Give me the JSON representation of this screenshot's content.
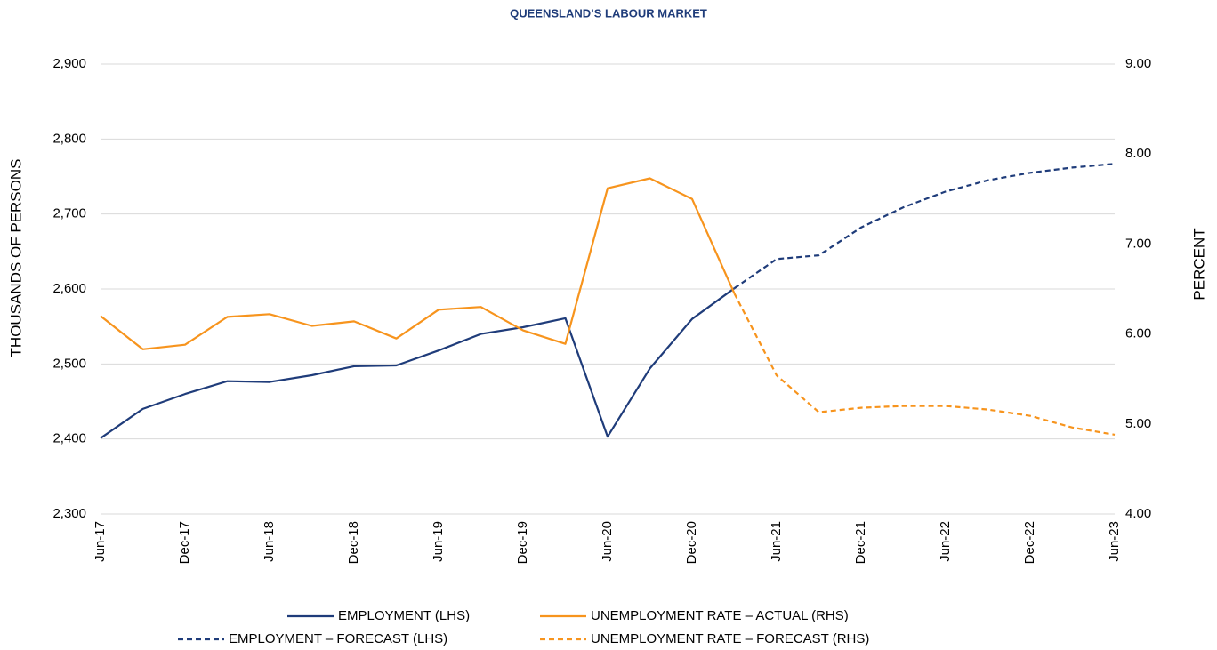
{
  "chart_data": {
    "type": "line",
    "title": "QUEENSLAND’S LABOUR MARKET",
    "y_label": "THOUSANDS OF PERSONS",
    "y2_label": "PERCENT",
    "categories": [
      "Jun-17",
      null,
      "Dec-17",
      null,
      "Jun-18",
      null,
      "Dec-18",
      null,
      "Jun-19",
      null,
      "Dec-19",
      null,
      "Jun-20",
      null,
      "Dec-20",
      null,
      "Jun-21",
      null,
      "Dec-21",
      null,
      "Jun-22",
      null,
      "Dec-22",
      null,
      "Jun-23"
    ],
    "ylim": [
      2300,
      2900
    ],
    "yticks": [
      {
        "value": 2300,
        "label": "2,300"
      },
      {
        "value": 2400,
        "label": "2,400"
      },
      {
        "value": 2500,
        "label": "2,500"
      },
      {
        "value": 2600,
        "label": "2,600"
      },
      {
        "value": 2700,
        "label": "2,700"
      },
      {
        "value": 2800,
        "label": "2,800"
      },
      {
        "value": 2900,
        "label": "2,900"
      }
    ],
    "y2lim": [
      4,
      9
    ],
    "y2ticks": [
      {
        "value": 4,
        "label": "4.00"
      },
      {
        "value": 5,
        "label": "5.00"
      },
      {
        "value": 6,
        "label": "6.00"
      },
      {
        "value": 7,
        "label": "7.00"
      },
      {
        "value": 8,
        "label": "8.00"
      },
      {
        "value": 9,
        "label": "9.00"
      }
    ],
    "grid": true,
    "series": [
      {
        "name": "EMPLOYMENT (LHS)",
        "color": "#1f3c7a",
        "dashed": false,
        "axis": "y",
        "values": [
          2401,
          2440,
          2460,
          2477,
          2476,
          2485,
          2497,
          2498,
          2518,
          2540,
          2549,
          2561,
          2403,
          2494,
          2560,
          2601,
          null,
          null,
          null,
          null,
          null,
          null,
          null,
          null,
          null
        ]
      },
      {
        "name": "UNEMPLOYMENT RATE – ACTUAL (RHS)",
        "color": "#f7941d",
        "dashed": false,
        "axis": "y2",
        "values": [
          6.2,
          5.83,
          5.88,
          6.19,
          6.22,
          6.09,
          6.14,
          5.95,
          6.27,
          6.3,
          6.04,
          5.89,
          7.62,
          7.73,
          7.5,
          6.45,
          null,
          null,
          null,
          null,
          null,
          null,
          null,
          null,
          null
        ]
      },
      {
        "name": "EMPLOYMENT – FORECAST (LHS)",
        "color": "#1f3c7a",
        "dashed": true,
        "axis": "y",
        "values": [
          null,
          null,
          null,
          null,
          null,
          null,
          null,
          null,
          null,
          null,
          null,
          null,
          null,
          null,
          null,
          2601,
          2640,
          2645,
          2682,
          2709,
          2730,
          2745,
          2755,
          2762,
          2767
        ]
      },
      {
        "name": "UNEMPLOYMENT RATE – FORECAST (RHS)",
        "color": "#f7941d",
        "dashed": true,
        "axis": "y2",
        "values": [
          null,
          null,
          null,
          null,
          null,
          null,
          null,
          null,
          null,
          null,
          null,
          null,
          null,
          null,
          null,
          6.45,
          5.54,
          5.13,
          5.18,
          5.2,
          5.2,
          5.16,
          5.09,
          4.96,
          4.88
        ]
      }
    ]
  }
}
